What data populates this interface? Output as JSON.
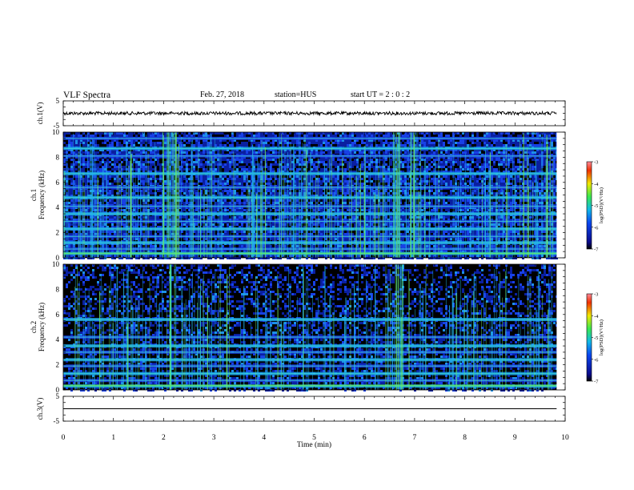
{
  "header": {
    "title": "VLF Spectra",
    "date": "Feb. 27, 2018",
    "station": "station=HUS",
    "start": "start  UT =   2 : 0  : 2"
  },
  "colors": {
    "spectro_low": "#000000",
    "spectro_mid": "#0a25d6",
    "spectro_high": "#19c8e8",
    "spike": "#6ee860"
  },
  "chart_data": [
    {
      "type": "line",
      "panel": "ch1",
      "ylabel": "ch.1(V)",
      "ylim": [
        -5,
        5
      ],
      "yticks": [
        "5",
        "-5"
      ],
      "xlim": [
        0,
        10
      ],
      "series": [
        {
          "description_level": 0.0,
          "values_note": "noise trace near zero"
        }
      ],
      "level": 0.0
    },
    {
      "type": "heatmap",
      "panel": "ch1-spectrogram",
      "ylabel": "ch.1\nFrequency (kHz)",
      "ylim": [
        0,
        10
      ],
      "yticks": [
        "0",
        "2",
        "4",
        "6",
        "8",
        "10"
      ],
      "xlim": [
        0,
        10
      ],
      "colorbar": {
        "label": "log(PSD)(V²/Hz)",
        "range": [
          -7,
          -3
        ],
        "ticks": [
          "-3",
          "-4",
          "-5",
          "-6",
          "-7"
        ]
      },
      "bands_khz": [
        0.35,
        0.7,
        1.2,
        1.7,
        2.3,
        2.9,
        3.5,
        4.1,
        4.8,
        5.6,
        6.7,
        8.1,
        8.7,
        9.5
      ],
      "bursts_min": [
        2.05,
        2.2,
        6.65,
        7.0
      ]
    },
    {
      "type": "heatmap",
      "panel": "ch2-spectrogram",
      "ylabel": "ch.2\nFrequency (kHz)",
      "ylim": [
        0,
        10
      ],
      "yticks": [
        "0",
        "2",
        "4",
        "6",
        "8",
        "10"
      ],
      "xlim": [
        0,
        10
      ],
      "colorbar": {
        "label": "log(PSD)(V²/Hz)",
        "range": [
          -7,
          -3
        ],
        "ticks": [
          "-3",
          "-4",
          "-5",
          "-6",
          "-7"
        ]
      },
      "bands_khz": [
        0.3,
        0.75,
        1.3,
        1.9,
        2.4,
        3.0,
        3.5,
        4.2,
        5.6
      ],
      "bursts_min": [
        2.2,
        6.7
      ]
    },
    {
      "type": "line",
      "panel": "ch3",
      "ylabel": "ch.3(V)",
      "ylim": [
        -5,
        5
      ],
      "yticks": [
        "5",
        "-5"
      ],
      "xlim": [
        0,
        10
      ],
      "level": 0.0
    }
  ],
  "xaxis": {
    "label": "Time (min)",
    "ticks": [
      "0",
      "1",
      "2",
      "3",
      "4",
      "5",
      "6",
      "7",
      "8",
      "9",
      "10"
    ]
  }
}
